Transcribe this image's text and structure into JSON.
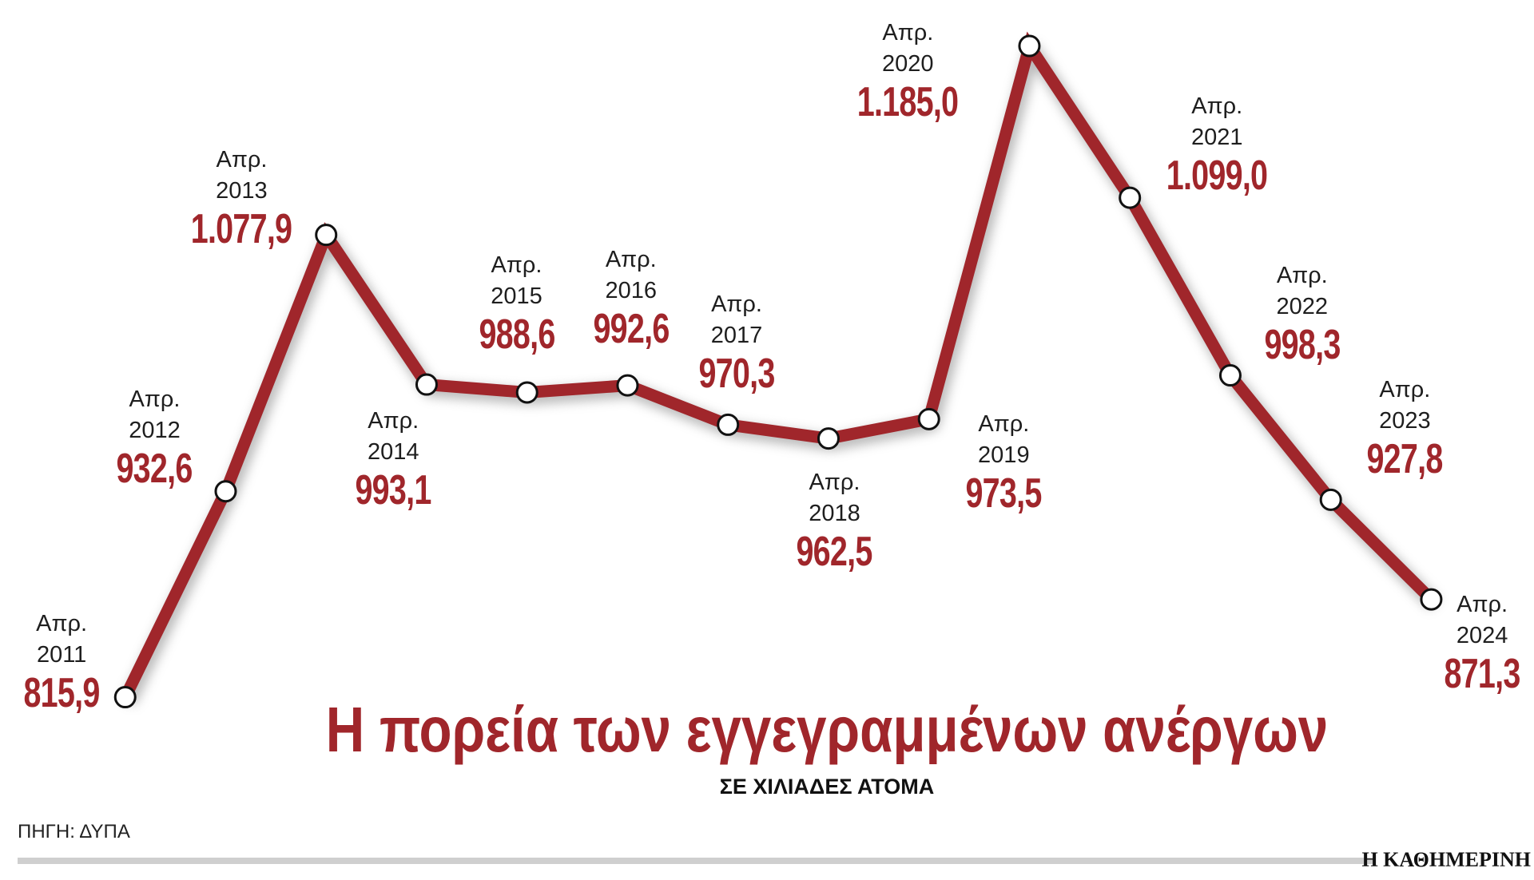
{
  "chart_data": {
    "type": "line",
    "title": "Η πορεία των εγγεγραμμένων ανέργων",
    "subtitle": "ΣΕ ΧΙΛΙΑΔΕΣ ΑΤΟΜΑ",
    "source": "ΠΗΓΗ: ΔΥΠΑ",
    "brand": "Η ΚΑΘΗΜΕΡΙΝΗ",
    "categories": [
      "Απρ.\n2011",
      "Απρ.\n2012",
      "Απρ.\n2013",
      "Απρ.\n2014",
      "Απρ.\n2015",
      "Απρ.\n2016",
      "Απρ.\n2017",
      "Απρ.\n2018",
      "Απρ.\n2019",
      "Απρ.\n2020",
      "Απρ.\n2021",
      "Απρ.\n2022",
      "Απρ.\n2023",
      "Απρ.\n2024"
    ],
    "values": [
      815.9,
      932.6,
      1077.9,
      993.1,
      988.6,
      992.6,
      970.3,
      962.5,
      973.5,
      1185.0,
      1099.0,
      998.3,
      927.8,
      871.3
    ],
    "value_labels": [
      "815,9",
      "932,6",
      "1.077,9",
      "993,1",
      "988,6",
      "992,6",
      "970,3",
      "962,5",
      "973,5",
      "1.185,0",
      "1.099,0",
      "998,3",
      "927,8",
      "871,3"
    ],
    "color": "#a0262b",
    "marker_color": "#ffffff"
  }
}
